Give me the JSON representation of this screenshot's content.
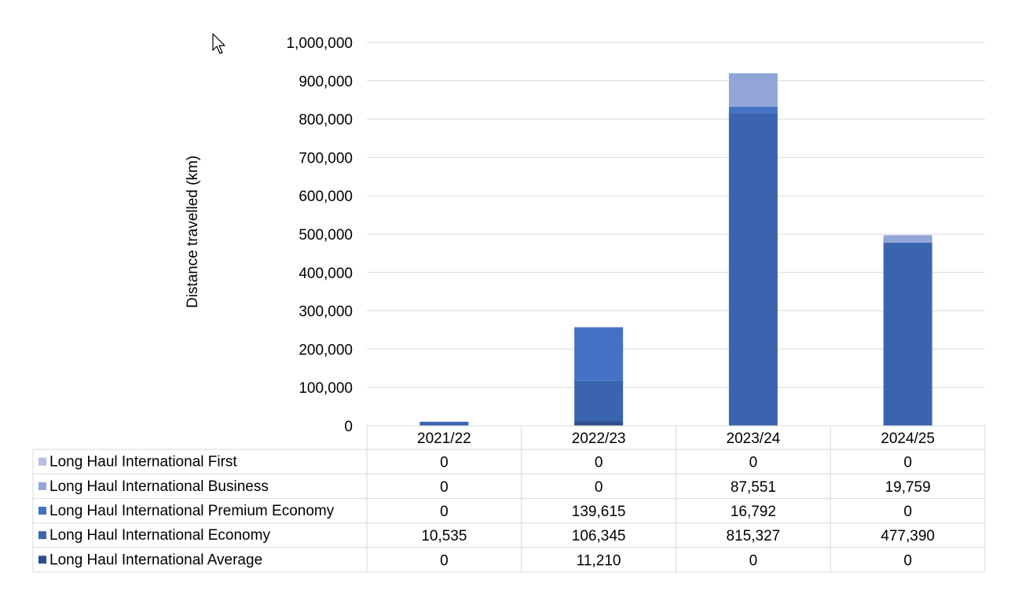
{
  "chart_data": {
    "type": "bar",
    "stacked": true,
    "ylabel": "Distance travelled (km)",
    "ylim": [
      0,
      1000000
    ],
    "yticks": [
      0,
      100000,
      200000,
      300000,
      400000,
      500000,
      600000,
      700000,
      800000,
      900000,
      1000000
    ],
    "ytick_labels": [
      "0",
      "100,000",
      "200,000",
      "300,000",
      "400,000",
      "500,000",
      "600,000",
      "700,000",
      "800,000",
      "900,000",
      "1,000,000"
    ],
    "grid": true,
    "legend": "data-table",
    "categories": [
      "2021/22",
      "2022/23",
      "2023/24",
      "2024/25"
    ],
    "series": [
      {
        "name": "Long Haul International First",
        "color": "#b4c1e2",
        "values": [
          0,
          0,
          0,
          0
        ],
        "labels": [
          "0",
          "0",
          "0",
          "0"
        ]
      },
      {
        "name": "Long Haul International Business",
        "color": "#91a5d9",
        "values": [
          0,
          0,
          87551,
          19759
        ],
        "labels": [
          "0",
          "0",
          "87,551",
          "19,759"
        ]
      },
      {
        "name": "Long Haul International Premium Economy",
        "color": "#4472c4",
        "values": [
          0,
          139615,
          16792,
          0
        ],
        "labels": [
          "0",
          "139,615",
          "16,792",
          "0"
        ]
      },
      {
        "name": "Long Haul International Economy",
        "color": "#3a65ae",
        "values": [
          10535,
          106345,
          815327,
          477390
        ],
        "labels": [
          "10,535",
          "106,345",
          "815,327",
          "477,390"
        ]
      },
      {
        "name": "Long Haul International Average",
        "color": "#2e4f8c",
        "values": [
          0,
          11210,
          0,
          0
        ],
        "labels": [
          "0",
          "11,210",
          "0",
          "0"
        ]
      }
    ]
  }
}
